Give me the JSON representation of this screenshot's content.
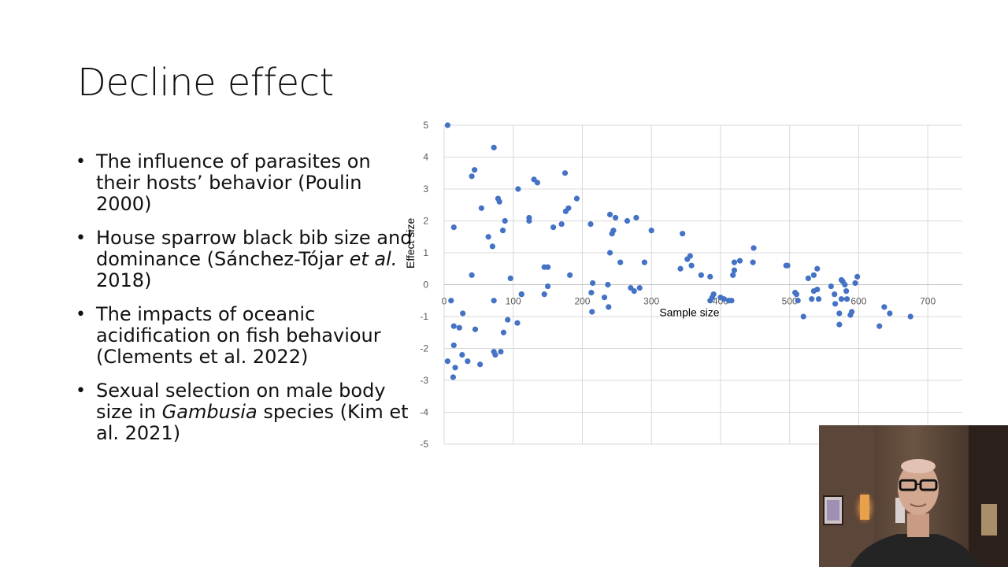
{
  "slide": {
    "title": "Decline effect",
    "bullets": [
      {
        "parts": [
          " The influence of parasites on their hosts’ behavior (Poulin 2000)"
        ]
      },
      {
        "parts": [
          "House sparrow black bib size and dominance (Sánchez-Tójar ",
          "et al.",
          " 2018)"
        ],
        "italic": [
          1
        ]
      },
      {
        "parts": [
          "The impacts of oceanic acidification on fish behaviour (Clements et al. 2022)"
        ]
      },
      {
        "parts": [
          "Sexual selection on male body size in ",
          "Gambusia",
          " species (Kim et al. 2021)"
        ],
        "italic": [
          1
        ]
      }
    ]
  },
  "webcam": {
    "icon": "person-video-feed"
  },
  "chart_data": {
    "type": "scatter",
    "title": "",
    "xlabel": "Sample size",
    "ylabel": "Effect size",
    "xlim": [
      0,
      750
    ],
    "ylim": [
      -5,
      5
    ],
    "xticks": [
      0,
      100,
      200,
      300,
      400,
      500,
      600,
      700
    ],
    "yticks": [
      5,
      4,
      3,
      2,
      1,
      0,
      -1,
      -2,
      -3,
      -4,
      -5
    ],
    "grid": true,
    "marker_color": "#4472C4",
    "series": [
      {
        "points": [
          [
            5,
            5.0
          ],
          [
            72,
            4.3
          ],
          [
            44,
            3.6
          ],
          [
            40,
            3.4
          ],
          [
            175,
            3.5
          ],
          [
            130,
            3.3
          ],
          [
            135,
            3.2
          ],
          [
            107,
            3.0
          ],
          [
            78,
            2.7
          ],
          [
            80,
            2.6
          ],
          [
            54,
            2.4
          ],
          [
            180,
            2.4
          ],
          [
            176,
            2.3
          ],
          [
            192,
            2.7
          ],
          [
            123,
            2.1
          ],
          [
            123,
            2.0
          ],
          [
            88,
            2.0
          ],
          [
            14,
            1.8
          ],
          [
            158,
            1.8
          ],
          [
            170,
            1.9
          ],
          [
            212,
            1.9
          ],
          [
            240,
            2.2
          ],
          [
            248,
            2.1
          ],
          [
            278,
            2.1
          ],
          [
            265,
            2.0
          ],
          [
            85,
            1.7
          ],
          [
            245,
            1.7
          ],
          [
            243,
            1.6
          ],
          [
            300,
            1.7
          ],
          [
            345,
            1.6
          ],
          [
            64,
            1.5
          ],
          [
            70,
            1.2
          ],
          [
            240,
            1.0
          ],
          [
            356,
            0.9
          ],
          [
            352,
            0.8
          ],
          [
            448,
            1.15
          ],
          [
            145,
            0.55
          ],
          [
            150,
            0.55
          ],
          [
            255,
            0.7
          ],
          [
            290,
            0.7
          ],
          [
            342,
            0.5
          ],
          [
            358,
            0.6
          ],
          [
            420,
            0.7
          ],
          [
            428,
            0.75
          ],
          [
            447,
            0.7
          ],
          [
            495,
            0.6
          ],
          [
            497,
            0.6
          ],
          [
            40,
            0.3
          ],
          [
            96,
            0.2
          ],
          [
            182,
            0.3
          ],
          [
            372,
            0.3
          ],
          [
            385,
            0.25
          ],
          [
            418,
            0.3
          ],
          [
            420,
            0.45
          ],
          [
            540,
            0.5
          ],
          [
            535,
            0.3
          ],
          [
            527,
            0.2
          ],
          [
            575,
            0.15
          ],
          [
            577,
            0.1
          ],
          [
            598,
            0.25
          ],
          [
            595,
            0.05
          ],
          [
            580,
            0.0
          ],
          [
            215,
            0.05
          ],
          [
            237,
            0.0
          ],
          [
            150,
            -0.05
          ],
          [
            270,
            -0.1
          ],
          [
            283,
            -0.1
          ],
          [
            275,
            -0.2
          ],
          [
            213,
            -0.25
          ],
          [
            145,
            -0.3
          ],
          [
            112,
            -0.3
          ],
          [
            390,
            -0.3
          ],
          [
            508,
            -0.25
          ],
          [
            510,
            -0.3
          ],
          [
            540,
            -0.15
          ],
          [
            535,
            -0.2
          ],
          [
            560,
            -0.05
          ],
          [
            565,
            -0.3
          ],
          [
            582,
            -0.2
          ],
          [
            232,
            -0.4
          ],
          [
            388,
            -0.4
          ],
          [
            400,
            -0.4
          ],
          [
            405,
            -0.45
          ],
          [
            412,
            -0.5
          ],
          [
            532,
            -0.45
          ],
          [
            542,
            -0.45
          ],
          [
            512,
            -0.5
          ],
          [
            10,
            -0.5
          ],
          [
            72,
            -0.5
          ],
          [
            112,
            -0.3
          ],
          [
            385,
            -0.5
          ],
          [
            416,
            -0.5
          ],
          [
            575,
            -0.45
          ],
          [
            583,
            -0.45
          ],
          [
            566,
            -0.6
          ],
          [
            238,
            -0.7
          ],
          [
            637,
            -0.7
          ],
          [
            214,
            -0.85
          ],
          [
            27,
            -0.9
          ],
          [
            572,
            -0.9
          ],
          [
            590,
            -0.85
          ],
          [
            588,
            -0.95
          ],
          [
            645,
            -0.9
          ],
          [
            675,
            -1.0
          ],
          [
            520,
            -1.0
          ],
          [
            92,
            -1.1
          ],
          [
            106,
            -1.2
          ],
          [
            572,
            -1.25
          ],
          [
            630,
            -1.3
          ],
          [
            14,
            -1.3
          ],
          [
            22,
            -1.35
          ],
          [
            45,
            -1.4
          ],
          [
            86,
            -1.5
          ],
          [
            14,
            -1.9
          ],
          [
            72,
            -2.1
          ],
          [
            82,
            -2.1
          ],
          [
            74,
            -2.2
          ],
          [
            26,
            -2.2
          ],
          [
            34,
            -2.4
          ],
          [
            5,
            -2.4
          ],
          [
            52,
            -2.5
          ],
          [
            16,
            -2.6
          ],
          [
            13,
            -2.9
          ]
        ]
      }
    ]
  }
}
